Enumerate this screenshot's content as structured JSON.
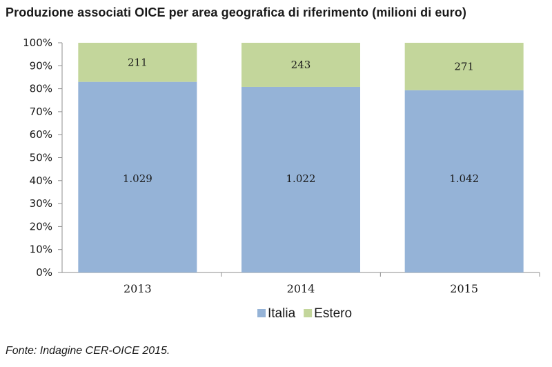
{
  "chart_data": {
    "type": "bar",
    "stacked": true,
    "normalized": true,
    "title": "Produzione associati OICE per area geografica di riferimento (milioni di euro)",
    "categories": [
      "2013",
      "2014",
      "2015"
    ],
    "series": [
      {
        "name": "Italia",
        "values": [
          1029,
          1022,
          1042
        ],
        "labels": [
          "1.029",
          "1.022",
          "1.042"
        ],
        "color": "#95B3D7"
      },
      {
        "name": "Estero",
        "values": [
          211,
          243,
          271
        ],
        "labels": [
          "211",
          "243",
          "271"
        ],
        "color": "#C3D69B"
      }
    ],
    "yticks": [
      "0%",
      "10%",
      "20%",
      "30%",
      "40%",
      "50%",
      "60%",
      "70%",
      "80%",
      "90%",
      "100%"
    ],
    "ylim": [
      0,
      100
    ],
    "grid": false,
    "legend": "bottom",
    "source": "Fonte: Indagine CER-OICE 2015."
  }
}
